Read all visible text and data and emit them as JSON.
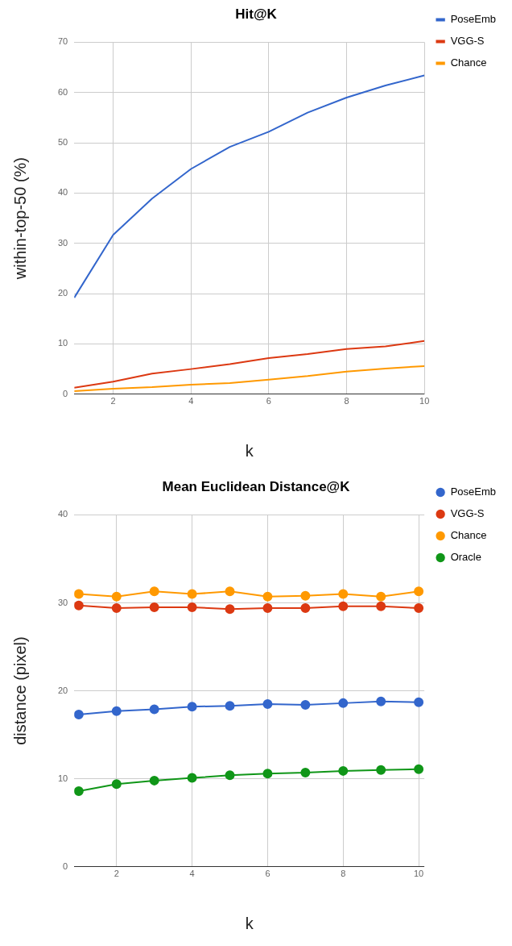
{
  "chart_data": [
    {
      "type": "line",
      "title": "Hit@K",
      "xlabel": "k",
      "ylabel": "within-top-50 (%)",
      "x": [
        1,
        2,
        3,
        4,
        5,
        6,
        7,
        8,
        9,
        10
      ],
      "xlim": [
        1,
        10
      ],
      "xticks": [
        2,
        4,
        6,
        8,
        10
      ],
      "ylim": [
        0,
        70
      ],
      "yticks": [
        0,
        10,
        20,
        30,
        40,
        50,
        60,
        70
      ],
      "grid": true,
      "legend": "top right",
      "marker": "none",
      "series": [
        {
          "name": "PoseEmb",
          "color": "#3366cc",
          "values": [
            19.2,
            31.7,
            38.9,
            44.8,
            49.2,
            52.2,
            56.0,
            59.0,
            61.4,
            63.4
          ]
        },
        {
          "name": "VGG-S",
          "color": "#dc3912",
          "values": [
            1.3,
            2.5,
            4.1,
            5.0,
            6.0,
            7.2,
            8.0,
            9.0,
            9.5,
            10.6
          ]
        },
        {
          "name": "Chance",
          "color": "#ff9900",
          "values": [
            0.6,
            1.1,
            1.4,
            1.9,
            2.2,
            2.9,
            3.6,
            4.5,
            5.1,
            5.6
          ]
        }
      ]
    },
    {
      "type": "line",
      "title": "Mean Euclidean Distance@K",
      "xlabel": "k",
      "ylabel": "distance (pixel)",
      "x": [
        1,
        2,
        3,
        4,
        5,
        6,
        7,
        8,
        9,
        10
      ],
      "xlim": [
        0.88,
        10.15
      ],
      "xticks": [
        2,
        4,
        6,
        8,
        10
      ],
      "ylim": [
        0,
        40
      ],
      "yticks": [
        0,
        10,
        20,
        30,
        40
      ],
      "grid": true,
      "legend": "top right",
      "marker": "circle",
      "series": [
        {
          "name": "PoseEmb",
          "color": "#3366cc",
          "values": [
            17.3,
            17.7,
            17.9,
            18.2,
            18.3,
            18.5,
            18.4,
            18.6,
            18.8,
            18.7
          ]
        },
        {
          "name": "VGG-S",
          "color": "#dc3912",
          "values": [
            29.7,
            29.4,
            29.5,
            29.5,
            29.3,
            29.4,
            29.4,
            29.6,
            29.6,
            29.4
          ]
        },
        {
          "name": "Chance",
          "color": "#ff9900",
          "values": [
            31.0,
            30.7,
            31.3,
            31.0,
            31.3,
            30.7,
            30.8,
            31.0,
            30.7,
            31.3
          ]
        },
        {
          "name": "Oracle",
          "color": "#109618",
          "values": [
            8.6,
            9.4,
            9.8,
            10.1,
            10.4,
            10.6,
            10.7,
            10.9,
            11.0,
            11.1
          ]
        }
      ]
    }
  ]
}
